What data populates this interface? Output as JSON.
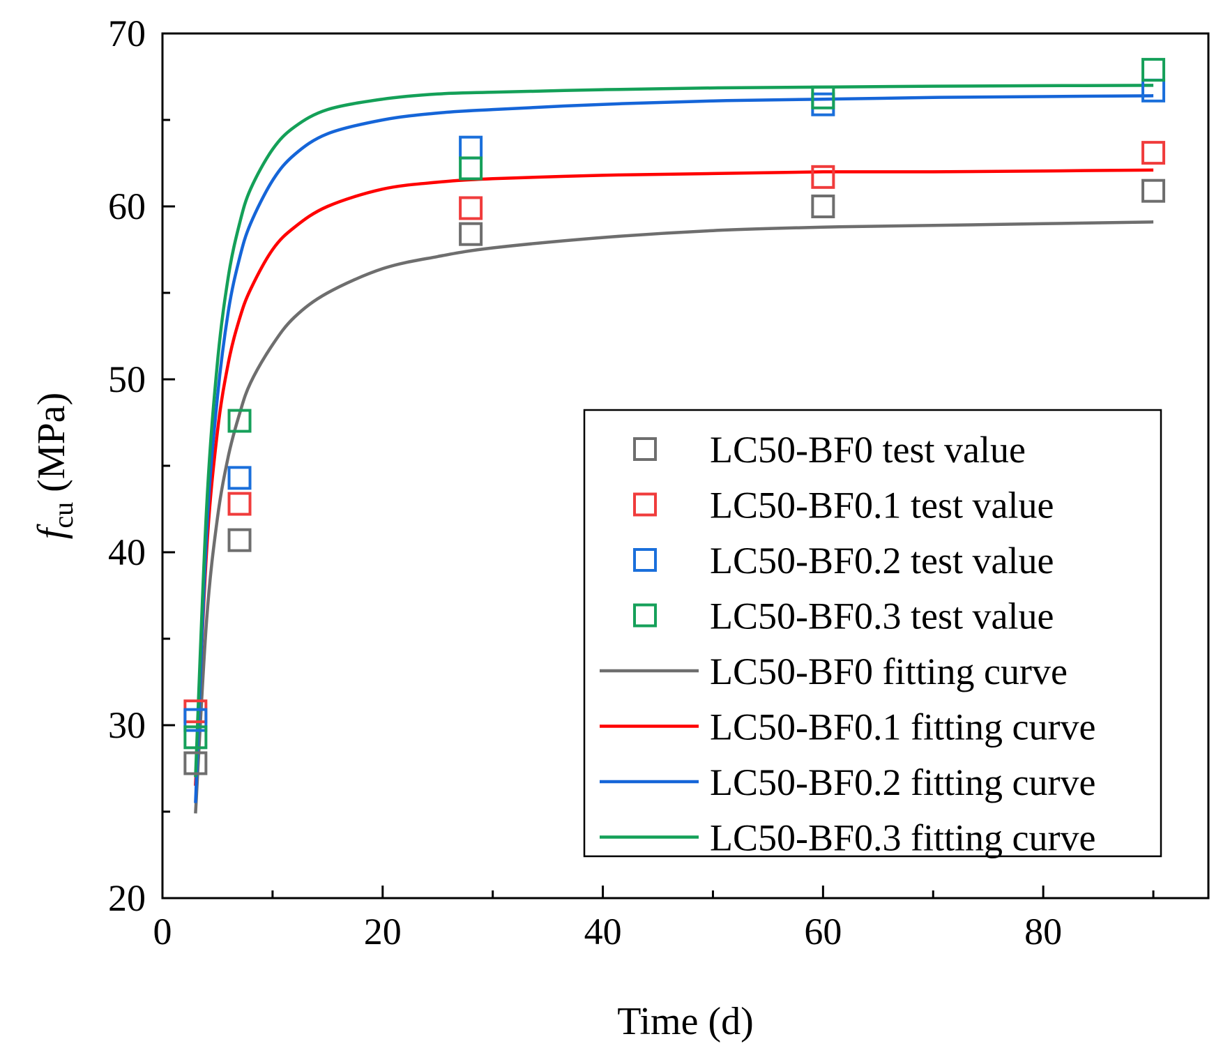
{
  "chart_data": {
    "type": "scatter",
    "title": "",
    "xlabel": "Time (d)",
    "ylabel": {
      "symbol": "f",
      "subscript": "cu",
      "unit": " (MPa)"
    },
    "xlim": [
      0,
      95
    ],
    "ylim": [
      20,
      70
    ],
    "xticks": [
      0,
      20,
      40,
      60,
      80
    ],
    "yticks": [
      20,
      30,
      40,
      50,
      60,
      70
    ],
    "x_minor_step": 10,
    "y_minor_step": 5,
    "legend_position": "bottom-right",
    "grid": false,
    "test_series": [
      {
        "name": "LC50-BF0 test value",
        "color": "#6e6e6e",
        "x": [
          3,
          7,
          28,
          60,
          90
        ],
        "values": [
          27.8,
          40.7,
          58.4,
          60.0,
          60.9
        ]
      },
      {
        "name": "LC50-BF0.1 test value",
        "color": "#f03c3c",
        "x": [
          3,
          7,
          28,
          60,
          90
        ],
        "values": [
          30.8,
          42.8,
          59.9,
          61.7,
          63.1
        ]
      },
      {
        "name": "LC50-BF0.2 test value",
        "color": "#1a6fdb",
        "x": [
          3,
          7,
          28,
          60,
          90
        ],
        "values": [
          30.3,
          44.3,
          63.4,
          65.9,
          66.7
        ]
      },
      {
        "name": "LC50-BF0.3 test value",
        "color": "#16a05a",
        "x": [
          3,
          7,
          28,
          60,
          90
        ],
        "values": [
          29.3,
          47.6,
          62.2,
          66.3,
          67.9
        ]
      }
    ],
    "fit_series": [
      {
        "name": "LC50-BF0 fitting curve",
        "color": "#6e6e6e",
        "x": [
          3.0,
          4.0,
          5.0,
          6.0,
          7.0,
          8.0,
          10.0,
          12.0,
          15.0,
          20.0,
          25.0,
          30.0,
          40.0,
          50.0,
          60.0,
          70.0,
          80.0,
          90.0
        ],
        "values": [
          24.9,
          36.0,
          42.0,
          45.6,
          48.0,
          49.8,
          52.0,
          53.6,
          55.0,
          56.4,
          57.1,
          57.6,
          58.2,
          58.6,
          58.8,
          58.9,
          59.0,
          59.1
        ]
      },
      {
        "name": "LC50-BF0.1 fitting curve",
        "color": "#ff0000",
        "x": [
          3.0,
          4.0,
          5.0,
          6.0,
          7.0,
          8.0,
          10.0,
          12.0,
          15.0,
          20.0,
          25.0,
          30.0,
          40.0,
          50.0,
          60.0,
          70.0,
          80.0,
          90.0
        ],
        "values": [
          26.5,
          40.0,
          47.0,
          51.0,
          53.5,
          55.2,
          57.5,
          58.8,
          60.0,
          61.0,
          61.4,
          61.6,
          61.8,
          61.9,
          62.0,
          62.0,
          62.05,
          62.1
        ]
      },
      {
        "name": "LC50-BF0.2 fitting curve",
        "color": "#1565d8",
        "x": [
          3.0,
          4.0,
          5.0,
          6.0,
          7.0,
          8.0,
          10.0,
          12.0,
          15.0,
          20.0,
          25.0,
          30.0,
          40.0,
          50.0,
          60.0,
          70.0,
          80.0,
          90.0
        ],
        "values": [
          25.5,
          41.0,
          49.0,
          54.0,
          57.0,
          59.0,
          61.5,
          63.0,
          64.2,
          65.0,
          65.4,
          65.6,
          65.9,
          66.1,
          66.2,
          66.3,
          66.35,
          66.4
        ]
      },
      {
        "name": "LC50-BF0.3 fitting curve",
        "color": "#14a058",
        "x": [
          3.0,
          4.0,
          5.0,
          6.0,
          7.0,
          8.0,
          10.0,
          12.0,
          15.0,
          20.0,
          25.0,
          30.0,
          40.0,
          50.0,
          60.0,
          70.0,
          80.0,
          90.0
        ],
        "values": [
          27.0,
          42.5,
          51.0,
          56.0,
          59.0,
          61.0,
          63.3,
          64.6,
          65.6,
          66.2,
          66.5,
          66.6,
          66.75,
          66.85,
          66.9,
          66.95,
          66.98,
          67.0
        ]
      }
    ]
  }
}
